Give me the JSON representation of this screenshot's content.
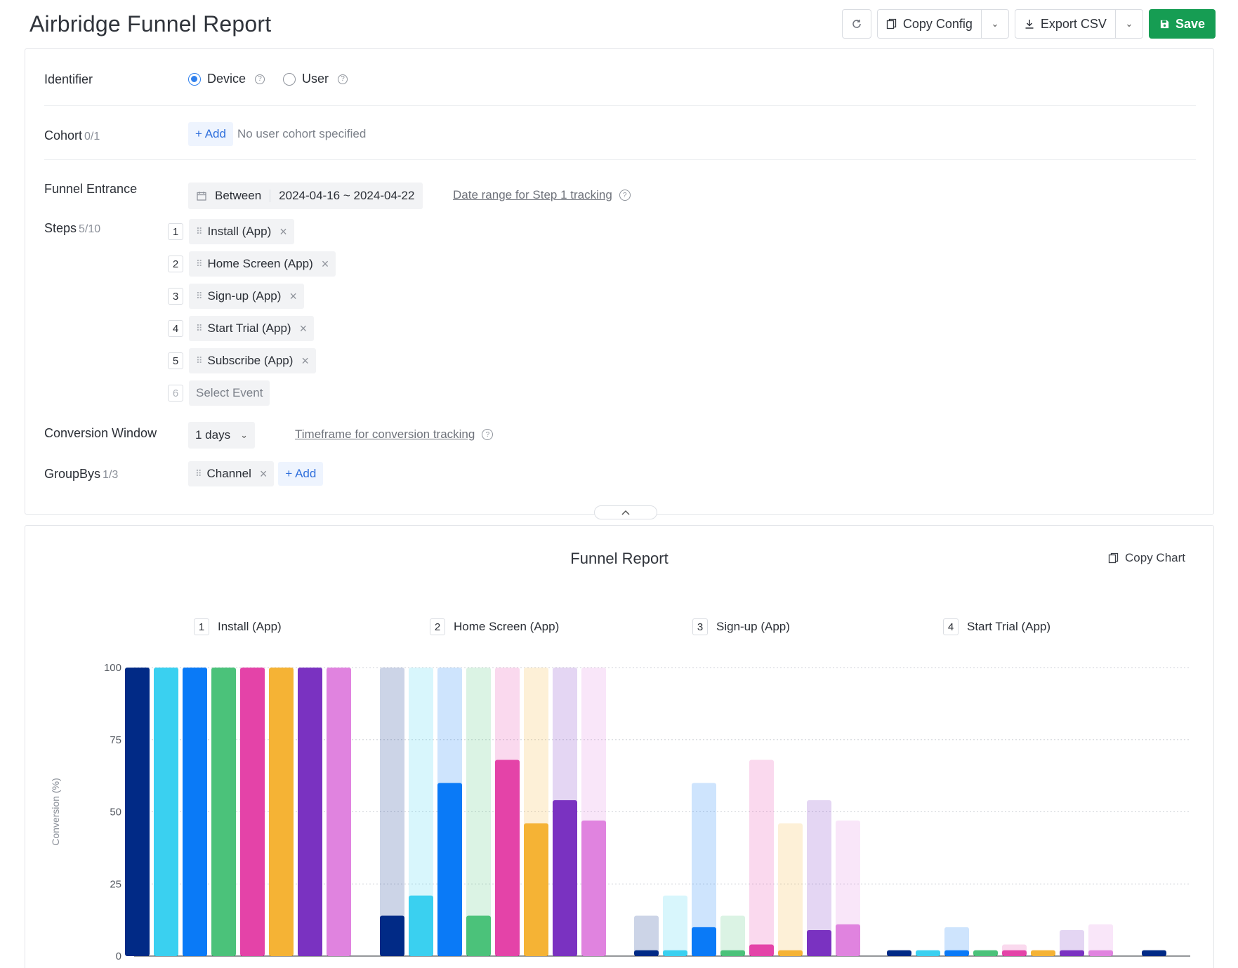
{
  "header": {
    "title": "Airbridge Funnel Report",
    "copy_config": "Copy Config",
    "export_csv": "Export CSV",
    "save": "Save"
  },
  "config": {
    "identifier": {
      "label": "Identifier",
      "options": [
        "Device",
        "User"
      ],
      "selected": "Device"
    },
    "cohort": {
      "label": "Cohort",
      "count": "0/1",
      "add": "+ Add",
      "empty": "No user cohort specified"
    },
    "funnel_entrance": {
      "label": "Funnel Entrance",
      "mode": "Between",
      "range": "2024-04-16 ~ 2024-04-22",
      "hint": "Date range for Step 1 tracking"
    },
    "steps": {
      "label": "Steps",
      "count": "5/10",
      "items": [
        {
          "num": "1",
          "name": "Install (App)"
        },
        {
          "num": "2",
          "name": "Home Screen (App)"
        },
        {
          "num": "3",
          "name": "Sign-up (App)"
        },
        {
          "num": "4",
          "name": "Start Trial (App)"
        },
        {
          "num": "5",
          "name": "Subscribe (App)"
        }
      ],
      "next_num": "6",
      "select_placeholder": "Select Event"
    },
    "conversion_window": {
      "label": "Conversion Window",
      "value": "1 days",
      "hint": "Timeframe for conversion tracking"
    },
    "groupbys": {
      "label": "GroupBys",
      "count": "1/3",
      "items": [
        "Channel"
      ],
      "add": "+ Add"
    }
  },
  "chart_panel": {
    "title": "Funnel Report",
    "copy_chart": "Copy Chart",
    "step_headers": [
      {
        "num": "1",
        "name": "Install (App)"
      },
      {
        "num": "2",
        "name": "Home Screen (App)"
      },
      {
        "num": "3",
        "name": "Sign-up (App)"
      },
      {
        "num": "4",
        "name": "Start Trial (App)"
      }
    ]
  },
  "chart_data": {
    "type": "bar",
    "ylabel": "Conversion (%)",
    "ylim": [
      0,
      100
    ],
    "yticks": [
      "0",
      "25",
      "50",
      "75",
      "100"
    ],
    "grid": true,
    "categories": [
      "Install (App)",
      "Home Screen (App)",
      "Sign-up (App)",
      "Start Trial (App)",
      "Subscribe (App)"
    ],
    "colors": [
      "#012a86",
      "#3ad0f0",
      "#0a7af7",
      "#4bc27a",
      "#e443a8",
      "#f5b335",
      "#7a32c1",
      "#e083df"
    ],
    "series": [
      {
        "values": [
          100,
          14,
          2,
          2,
          2
        ]
      },
      {
        "values": [
          100,
          21,
          2,
          2,
          1
        ]
      },
      {
        "values": [
          100,
          60,
          10,
          2,
          1
        ]
      },
      {
        "values": [
          100,
          14,
          2,
          2,
          1
        ]
      },
      {
        "values": [
          100,
          68,
          4,
          2,
          1
        ]
      },
      {
        "values": [
          100,
          46,
          2,
          2,
          1
        ]
      },
      {
        "values": [
          100,
          54,
          9,
          2,
          1
        ]
      },
      {
        "values": [
          100,
          47,
          11,
          2,
          1
        ]
      }
    ]
  }
}
